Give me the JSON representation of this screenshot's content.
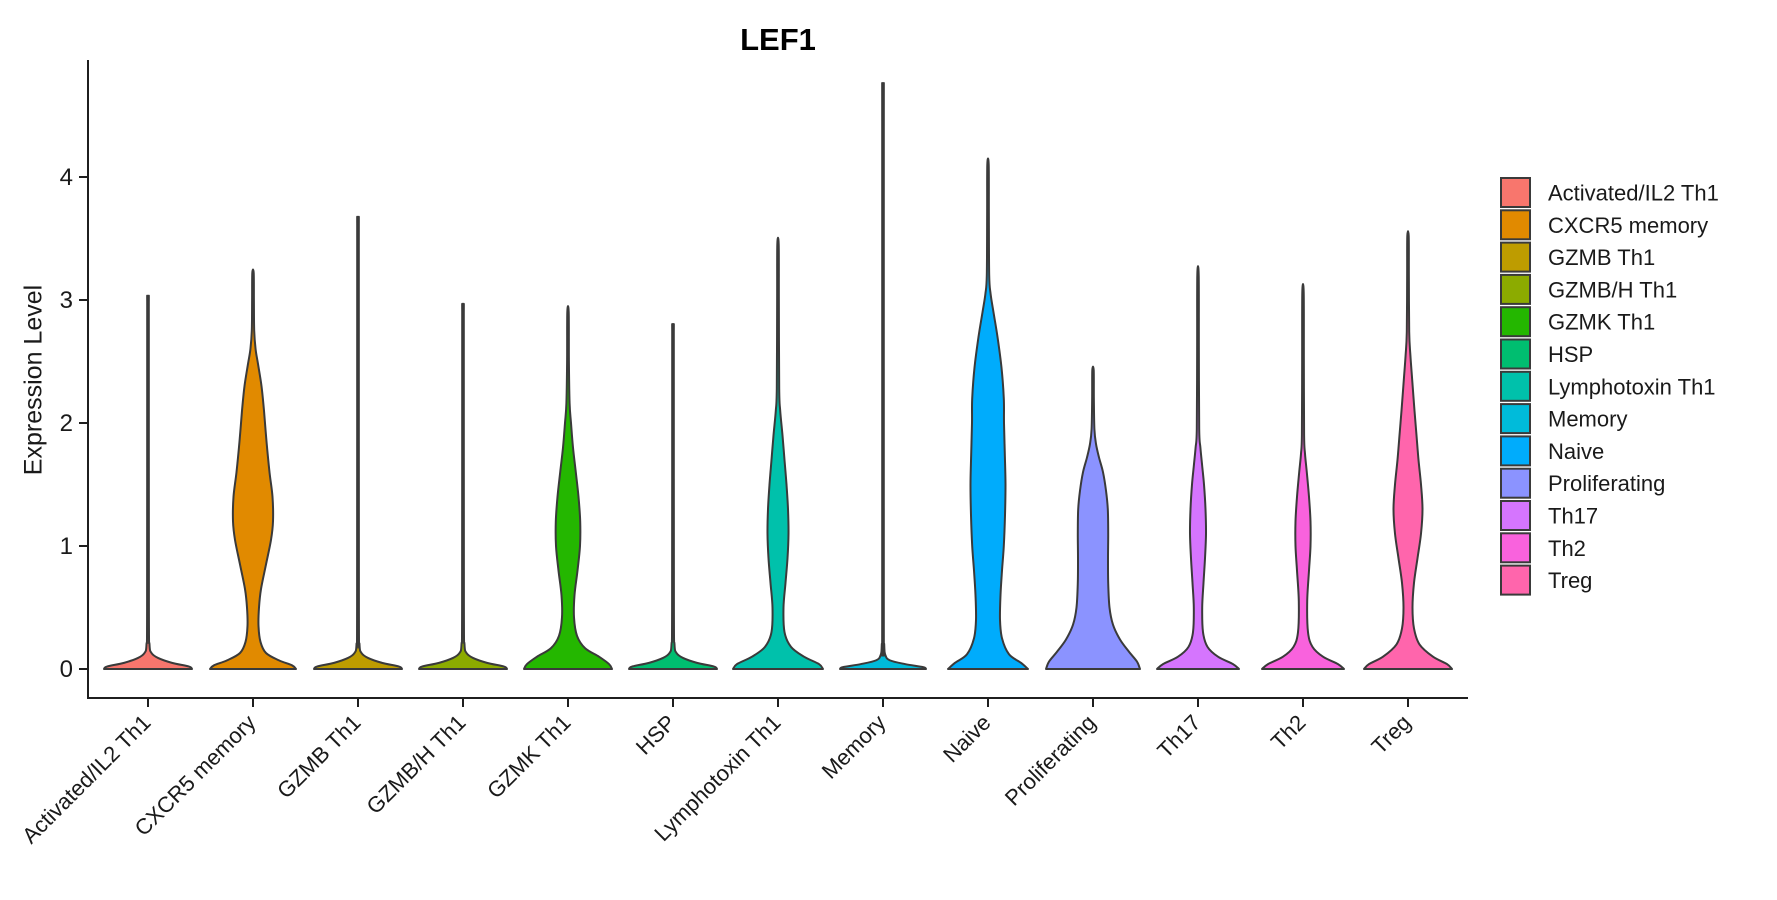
{
  "title": "LEF1",
  "axes": {
    "y_label": "Expression Level",
    "y_ticks": [
      "0",
      "1",
      "2",
      "3",
      "4"
    ]
  },
  "colors": {
    "axis": "#1f1f1f",
    "outline": "#3a3a3a",
    "text": "#1a1a1a"
  },
  "chart_data": {
    "type": "violin",
    "title": "LEF1",
    "xlabel": "",
    "ylabel": "Expression Level",
    "ylim": [
      0,
      4.8
    ],
    "y_ticks": [
      0,
      1,
      2,
      3,
      4
    ],
    "grid": false,
    "legend_position": "right",
    "categories": [
      "Activated/IL2 Th1",
      "CXCR5 memory",
      "GZMB Th1",
      "GZMB/H Th1",
      "GZMK Th1",
      "HSP",
      "Lymphotoxin Th1",
      "Memory",
      "Naive",
      "Proliferating",
      "Th17",
      "Th2",
      "Treg"
    ],
    "series": [
      {
        "name": "Activated/IL2 Th1",
        "color": "#F8766D",
        "max_expression": 2.98,
        "profile": [
          [
            0,
            44
          ],
          [
            0.02,
            41
          ],
          [
            0.05,
            24
          ],
          [
            0.09,
            10
          ],
          [
            0.13,
            3.5
          ],
          [
            0.2,
            1.5
          ],
          [
            0.5,
            0.9
          ],
          [
            2.8,
            0.8
          ],
          [
            2.98,
            0.7
          ]
        ]
      },
      {
        "name": "CXCR5 memory",
        "color": "#E18A00",
        "max_expression": 3.22,
        "profile": [
          [
            0,
            43
          ],
          [
            0.03,
            39
          ],
          [
            0.07,
            26
          ],
          [
            0.13,
            13
          ],
          [
            0.22,
            7.5
          ],
          [
            0.35,
            5.5
          ],
          [
            0.5,
            6
          ],
          [
            0.65,
            8
          ],
          [
            0.85,
            13
          ],
          [
            1.05,
            18
          ],
          [
            1.2,
            20
          ],
          [
            1.4,
            19.5
          ],
          [
            1.6,
            16.5
          ],
          [
            1.85,
            13.5
          ],
          [
            2.1,
            11
          ],
          [
            2.3,
            8.5
          ],
          [
            2.48,
            5
          ],
          [
            2.6,
            2.6
          ],
          [
            2.75,
            1.2
          ],
          [
            3.0,
            0.9
          ],
          [
            3.22,
            0.7
          ]
        ]
      },
      {
        "name": "GZMB Th1",
        "color": "#BE9C00",
        "max_expression": 3.58,
        "profile": [
          [
            0,
            44
          ],
          [
            0.02,
            41
          ],
          [
            0.05,
            24
          ],
          [
            0.09,
            10
          ],
          [
            0.13,
            3.5
          ],
          [
            0.2,
            1.5
          ],
          [
            0.5,
            0.9
          ],
          [
            3.4,
            0.8
          ],
          [
            3.58,
            0.7
          ]
        ]
      },
      {
        "name": "GZMB/H Th1",
        "color": "#8CAB00",
        "max_expression": 2.9,
        "profile": [
          [
            0,
            44
          ],
          [
            0.02,
            41
          ],
          [
            0.05,
            24
          ],
          [
            0.09,
            10
          ],
          [
            0.13,
            3.5
          ],
          [
            0.2,
            1.5
          ],
          [
            0.5,
            0.9
          ],
          [
            2.75,
            0.8
          ],
          [
            2.9,
            0.7
          ]
        ]
      },
      {
        "name": "GZMK Th1",
        "color": "#24B700",
        "max_expression": 2.9,
        "profile": [
          [
            0,
            44
          ],
          [
            0.04,
            41
          ],
          [
            0.1,
            31
          ],
          [
            0.17,
            17
          ],
          [
            0.27,
            9
          ],
          [
            0.42,
            6
          ],
          [
            0.6,
            6.5
          ],
          [
            0.8,
            9.5
          ],
          [
            1.0,
            12
          ],
          [
            1.2,
            12.2
          ],
          [
            1.4,
            10.5
          ],
          [
            1.6,
            7.8
          ],
          [
            1.8,
            5
          ],
          [
            2.0,
            3
          ],
          [
            2.16,
            1.6
          ],
          [
            2.5,
            0.9
          ],
          [
            2.9,
            0.7
          ]
        ]
      },
      {
        "name": "HSP",
        "color": "#00BE70",
        "max_expression": 2.74,
        "profile": [
          [
            0,
            44
          ],
          [
            0.02,
            41
          ],
          [
            0.05,
            24
          ],
          [
            0.09,
            10
          ],
          [
            0.13,
            3.5
          ],
          [
            0.2,
            1.5
          ],
          [
            0.5,
            0.9
          ],
          [
            2.6,
            0.8
          ],
          [
            2.74,
            0.7
          ]
        ]
      },
      {
        "name": "Lymphotoxin Th1",
        "color": "#00C1AB",
        "max_expression": 3.45,
        "profile": [
          [
            0,
            45
          ],
          [
            0.04,
            41
          ],
          [
            0.1,
            26
          ],
          [
            0.18,
            13
          ],
          [
            0.3,
            6.5
          ],
          [
            0.5,
            5.5
          ],
          [
            0.7,
            7.5
          ],
          [
            0.9,
            9.5
          ],
          [
            1.1,
            10.5
          ],
          [
            1.3,
            10
          ],
          [
            1.5,
            8.5
          ],
          [
            1.7,
            6.5
          ],
          [
            1.9,
            4.5
          ],
          [
            2.1,
            2.2
          ],
          [
            2.28,
            1.2
          ],
          [
            3.0,
            0.85
          ],
          [
            3.45,
            0.7
          ]
        ]
      },
      {
        "name": "Memory",
        "color": "#00BBDA",
        "max_expression": 4.62,
        "profile": [
          [
            0,
            43
          ],
          [
            0.015,
            40
          ],
          [
            0.04,
            22
          ],
          [
            0.07,
            7
          ],
          [
            0.11,
            2.5
          ],
          [
            0.2,
            1.2
          ],
          [
            0.5,
            0.8
          ],
          [
            4.4,
            0.8
          ],
          [
            4.62,
            0.7
          ]
        ]
      },
      {
        "name": "Naive",
        "color": "#00ACFC",
        "max_expression": 4.1,
        "profile": [
          [
            0,
            40
          ],
          [
            0.05,
            33
          ],
          [
            0.12,
            21
          ],
          [
            0.25,
            14
          ],
          [
            0.4,
            12
          ],
          [
            0.6,
            12.5
          ],
          [
            0.8,
            14
          ],
          [
            1.0,
            15.8
          ],
          [
            1.25,
            17
          ],
          [
            1.5,
            17.5
          ],
          [
            1.75,
            16.8
          ],
          [
            2.0,
            16
          ],
          [
            2.2,
            15.8
          ],
          [
            2.45,
            13.5
          ],
          [
            2.7,
            9.5
          ],
          [
            2.9,
            5.5
          ],
          [
            3.05,
            2.6
          ],
          [
            3.2,
            1.2
          ],
          [
            3.7,
            0.85
          ],
          [
            4.1,
            0.7
          ]
        ]
      },
      {
        "name": "Proliferating",
        "color": "#8B93FF",
        "max_expression": 2.43,
        "profile": [
          [
            0,
            47
          ],
          [
            0.06,
            44
          ],
          [
            0.14,
            36
          ],
          [
            0.24,
            27
          ],
          [
            0.36,
            20
          ],
          [
            0.5,
            16.5
          ],
          [
            0.7,
            15.2
          ],
          [
            0.9,
            15
          ],
          [
            1.1,
            15.2
          ],
          [
            1.3,
            14.8
          ],
          [
            1.45,
            13
          ],
          [
            1.6,
            10
          ],
          [
            1.72,
            6
          ],
          [
            1.83,
            3
          ],
          [
            1.95,
            1.4
          ],
          [
            2.2,
            0.85
          ],
          [
            2.43,
            0.7
          ]
        ]
      },
      {
        "name": "Th17",
        "color": "#D575FE",
        "max_expression": 3.2,
        "profile": [
          [
            0,
            41
          ],
          [
            0.04,
            35
          ],
          [
            0.1,
            20
          ],
          [
            0.18,
            9.5
          ],
          [
            0.3,
            5
          ],
          [
            0.5,
            4.2
          ],
          [
            0.7,
            5.5
          ],
          [
            0.9,
            7
          ],
          [
            1.1,
            8
          ],
          [
            1.3,
            7.5
          ],
          [
            1.5,
            6
          ],
          [
            1.65,
            4.2
          ],
          [
            1.8,
            2.4
          ],
          [
            1.95,
            1.2
          ],
          [
            2.6,
            0.85
          ],
          [
            3.2,
            0.7
          ]
        ]
      },
      {
        "name": "Th2",
        "color": "#F962DD",
        "max_expression": 3.06,
        "profile": [
          [
            0,
            41
          ],
          [
            0.04,
            35
          ],
          [
            0.1,
            20
          ],
          [
            0.18,
            9.5
          ],
          [
            0.3,
            5
          ],
          [
            0.55,
            4.2
          ],
          [
            0.8,
            6
          ],
          [
            1.0,
            7.5
          ],
          [
            1.2,
            7.5
          ],
          [
            1.4,
            6
          ],
          [
            1.6,
            3.8
          ],
          [
            1.75,
            2
          ],
          [
            1.9,
            1.1
          ],
          [
            2.5,
            0.85
          ],
          [
            3.06,
            0.7
          ]
        ]
      },
      {
        "name": "Treg",
        "color": "#FF65AC",
        "max_expression": 3.52,
        "profile": [
          [
            0,
            44
          ],
          [
            0.04,
            39
          ],
          [
            0.1,
            25
          ],
          [
            0.2,
            11.5
          ],
          [
            0.33,
            6
          ],
          [
            0.5,
            4.5
          ],
          [
            0.7,
            6
          ],
          [
            0.9,
            9.5
          ],
          [
            1.1,
            13
          ],
          [
            1.3,
            14.5
          ],
          [
            1.5,
            13
          ],
          [
            1.7,
            10.5
          ],
          [
            1.9,
            8.5
          ],
          [
            2.1,
            6.5
          ],
          [
            2.35,
            4.2
          ],
          [
            2.55,
            2.4
          ],
          [
            2.74,
            1.2
          ],
          [
            3.2,
            0.85
          ],
          [
            3.52,
            0.7
          ]
        ]
      }
    ]
  }
}
